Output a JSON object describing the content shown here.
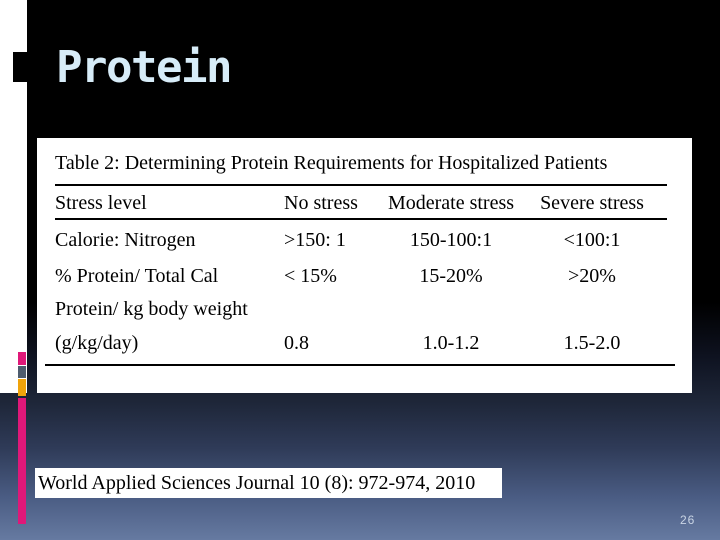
{
  "slide": {
    "title": "Protein",
    "page_number": "26",
    "citation": "World Applied Sciences Journal 10 (8): 972-974, 2010"
  },
  "table": {
    "title": "Table 2: Determining Protein Requirements for Hospitalized Patients",
    "columns": [
      "Stress level",
      "No stress",
      "Moderate stress",
      "Severe stress"
    ],
    "rows": [
      [
        "Calorie: Nitrogen",
        ">150: 1",
        "150-100:1",
        "<100:1"
      ],
      [
        "% Protein/ Total Cal",
        "< 15%",
        "15-20%",
        ">20%"
      ],
      [
        "Protein/ kg body weight",
        "",
        "",
        ""
      ],
      [
        "(g/kg/day)",
        "0.8",
        "1.0-1.2",
        "1.5-2.0"
      ]
    ]
  },
  "colors": {
    "title_text": "#d7ecf8",
    "accent_pink": "#df1879",
    "accent_slate": "#4e5c6e",
    "accent_yellow": "#f0a30a",
    "background_top": "#000000",
    "background_bottom": "#667aa1",
    "card_background": "#ffffff",
    "page_number_text": "#c9d4e4"
  }
}
